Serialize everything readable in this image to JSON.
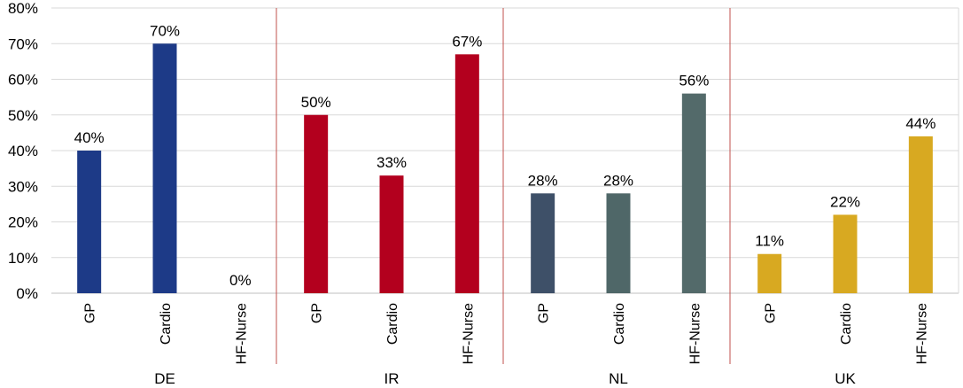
{
  "chart_data": {
    "type": "bar",
    "title": "",
    "xlabel": "",
    "ylabel": "",
    "ylim": [
      0,
      80
    ],
    "y_ticks": [
      "0%",
      "10%",
      "20%",
      "30%",
      "40%",
      "50%",
      "60%",
      "70%",
      "80%"
    ],
    "y_tick_values": [
      0,
      10,
      20,
      30,
      40,
      50,
      60,
      70,
      80
    ],
    "grid": true,
    "legend": "none",
    "groups": [
      {
        "name": "DE",
        "bars": [
          {
            "category": "GP",
            "value": 40,
            "label": "40%",
            "color": "#1d3a87"
          },
          {
            "category": "Cardio",
            "value": 70,
            "label": "70%",
            "color": "#1d3a87"
          },
          {
            "category": "HF-Nurse",
            "value": 0,
            "label": "0%",
            "color": "#1d3a87"
          }
        ]
      },
      {
        "name": "IR",
        "bars": [
          {
            "category": "GP",
            "value": 50,
            "label": "50%",
            "color": "#b3001e"
          },
          {
            "category": "Cardio",
            "value": 33,
            "label": "33%",
            "color": "#b3001e"
          },
          {
            "category": "HF-Nurse",
            "value": 67,
            "label": "67%",
            "color": "#b3001e"
          }
        ]
      },
      {
        "name": "NL",
        "bars": [
          {
            "category": "GP",
            "value": 28,
            "label": "28%",
            "color": "#3e5068"
          },
          {
            "category": "Cardio",
            "value": 28,
            "label": "28%",
            "color": "#4f6768"
          },
          {
            "category": "HF-Nurse",
            "value": 56,
            "label": "56%",
            "color": "#536a6a"
          }
        ]
      },
      {
        "name": "UK",
        "bars": [
          {
            "category": "GP",
            "value": 11,
            "label": "11%",
            "color": "#d8a921"
          },
          {
            "category": "Cardio",
            "value": 22,
            "label": "22%",
            "color": "#d8a921"
          },
          {
            "category": "HF-Nurse",
            "value": 44,
            "label": "44%",
            "color": "#d8a921"
          }
        ]
      }
    ],
    "colors": {
      "grid": "#d9d9d9",
      "separator": "#c0504d",
      "axis": "#bfbfbf"
    }
  }
}
